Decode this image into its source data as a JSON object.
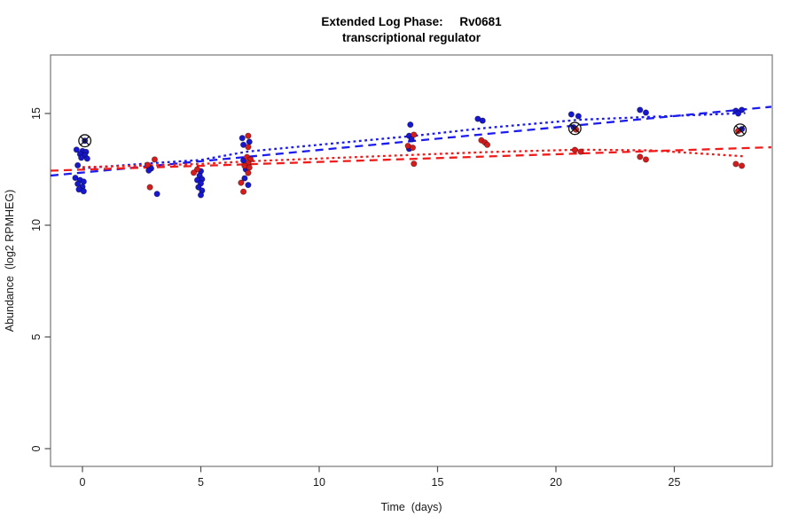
{
  "title": {
    "line1": "Extended Log Phase:     Rv0681",
    "line2": "transcriptional regulator"
  },
  "axes": {
    "x": {
      "label": "Time  (days)"
    },
    "y": {
      "label": "Abundance  (log2 RPMHEG)"
    }
  },
  "colors": {
    "point_blue": "#1717cd",
    "point_red": "#d51c1c",
    "line_blue": "#1c1cf0",
    "line_red": "#f01c1c",
    "frame": "#777777",
    "tick": "#4d4d4d",
    "outlier_marker": "#111111"
  },
  "chart_data": {
    "type": "scatter",
    "title": "Extended Log Phase: Rv0681 transcriptional regulator",
    "xlabel": "Time (days)",
    "ylabel": "Abundance (log2 RPMHEG)",
    "xlim": [
      -1.35,
      29.1
    ],
    "ylim": [
      -0.8,
      17.6
    ],
    "x_ticks": [
      0,
      5,
      10,
      15,
      20,
      25
    ],
    "y_ticks": [
      0,
      5,
      10,
      15
    ],
    "grid": false,
    "legend": "none",
    "series": [
      {
        "name": "condition-blue",
        "color": "#1717cd",
        "points": [
          [
            0.1,
            13.78
          ],
          [
            -0.25,
            13.38
          ],
          [
            0.0,
            13.32
          ],
          [
            0.15,
            13.28
          ],
          [
            -0.1,
            13.18
          ],
          [
            0.1,
            13.12
          ],
          [
            -0.05,
            13.02
          ],
          [
            0.2,
            12.98
          ],
          [
            -0.2,
            12.68
          ],
          [
            -0.3,
            12.12
          ],
          [
            -0.1,
            12.02
          ],
          [
            0.05,
            11.95
          ],
          [
            -0.2,
            11.85
          ],
          [
            0.0,
            11.72
          ],
          [
            -0.15,
            11.6
          ],
          [
            0.05,
            11.52
          ],
          [
            2.9,
            12.54
          ],
          [
            2.8,
            12.45
          ],
          [
            3.15,
            11.4
          ],
          [
            5.0,
            12.42
          ],
          [
            4.95,
            12.22
          ],
          [
            5.05,
            12.06
          ],
          [
            4.85,
            12.02
          ],
          [
            5.0,
            11.87
          ],
          [
            4.9,
            11.7
          ],
          [
            5.05,
            11.55
          ],
          [
            5.0,
            11.35
          ],
          [
            6.75,
            13.9
          ],
          [
            7.05,
            13.73
          ],
          [
            6.8,
            13.6
          ],
          [
            6.8,
            12.9
          ],
          [
            6.9,
            12.5
          ],
          [
            6.85,
            12.1
          ],
          [
            7.0,
            11.8
          ],
          [
            13.85,
            14.5
          ],
          [
            13.8,
            14.0
          ],
          [
            13.9,
            13.85
          ],
          [
            13.8,
            13.42
          ],
          [
            16.7,
            14.76
          ],
          [
            16.9,
            14.68
          ],
          [
            20.65,
            14.96
          ],
          [
            20.95,
            14.88
          ],
          [
            20.75,
            14.38
          ],
          [
            23.55,
            15.16
          ],
          [
            23.8,
            15.04
          ],
          [
            27.6,
            15.12
          ],
          [
            27.85,
            15.16
          ],
          [
            27.7,
            15.0
          ],
          [
            27.85,
            14.3
          ]
        ]
      },
      {
        "name": "condition-red",
        "color": "#d51c1c",
        "points": [
          [
            3.05,
            12.94
          ],
          [
            2.75,
            12.7
          ],
          [
            2.85,
            11.7
          ],
          [
            4.85,
            12.5
          ],
          [
            4.7,
            12.35
          ],
          [
            7.0,
            14.0
          ],
          [
            7.0,
            13.5
          ],
          [
            6.95,
            13.05
          ],
          [
            7.1,
            12.94
          ],
          [
            7.0,
            12.78
          ],
          [
            6.85,
            12.66
          ],
          [
            7.05,
            12.58
          ],
          [
            7.0,
            12.34
          ],
          [
            6.7,
            11.9
          ],
          [
            6.8,
            11.5
          ],
          [
            14.0,
            14.05
          ],
          [
            13.75,
            13.55
          ],
          [
            13.95,
            13.47
          ],
          [
            14.0,
            12.75
          ],
          [
            16.85,
            13.8
          ],
          [
            17.0,
            13.7
          ],
          [
            17.1,
            13.6
          ],
          [
            20.85,
            14.28
          ],
          [
            20.8,
            13.37
          ],
          [
            21.05,
            13.29
          ],
          [
            23.55,
            13.06
          ],
          [
            23.8,
            12.94
          ],
          [
            27.7,
            14.22
          ],
          [
            27.6,
            12.74
          ],
          [
            27.85,
            12.66
          ]
        ]
      }
    ],
    "trend_lines": [
      {
        "name": "blue-linear-fit",
        "color": "#1c1cf0",
        "style": "dashed",
        "points": [
          [
            -1.35,
            12.22
          ],
          [
            29.1,
            15.3
          ]
        ]
      },
      {
        "name": "blue-smooth-fit",
        "color": "#1c1cf0",
        "style": "dotted",
        "points": [
          [
            0,
            12.55
          ],
          [
            3,
            12.78
          ],
          [
            5,
            12.92
          ],
          [
            7,
            13.3
          ],
          [
            14,
            14.0
          ],
          [
            17,
            14.35
          ],
          [
            21,
            14.72
          ],
          [
            24,
            14.85
          ],
          [
            28,
            15.02
          ]
        ]
      },
      {
        "name": "red-linear-fit",
        "color": "#f01c1c",
        "style": "dashed",
        "points": [
          [
            -1.35,
            12.44
          ],
          [
            29.1,
            13.49
          ]
        ]
      },
      {
        "name": "red-smooth-fit",
        "color": "#f01c1c",
        "style": "dotted",
        "points": [
          [
            0,
            12.6
          ],
          [
            3,
            12.68
          ],
          [
            5,
            12.74
          ],
          [
            7,
            12.86
          ],
          [
            14,
            13.15
          ],
          [
            17,
            13.27
          ],
          [
            21,
            13.38
          ],
          [
            24,
            13.35
          ],
          [
            28,
            13.08
          ]
        ]
      }
    ],
    "outlier_markers": {
      "symbol": "circle-x",
      "centers": [
        [
          0.1,
          13.78
        ],
        [
          20.8,
          14.33
        ],
        [
          27.78,
          14.26
        ]
      ]
    }
  }
}
